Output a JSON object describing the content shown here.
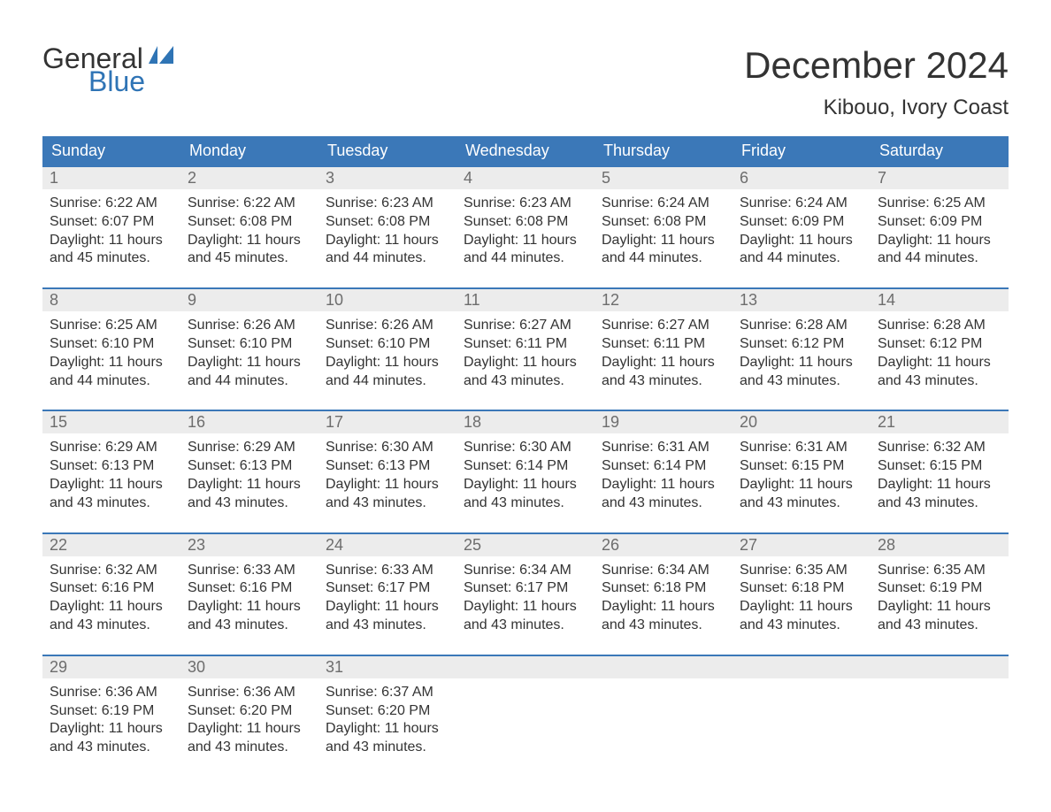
{
  "logo": {
    "word1": "General",
    "word2": "Blue"
  },
  "title": "December 2024",
  "location": "Kibouo, Ivory Coast",
  "colors": {
    "header_bg": "#3b78b8",
    "header_text": "#ffffff",
    "daynum_bg": "#ececec",
    "daynum_text": "#6d6d6d",
    "body_text": "#333333",
    "logo_blue": "#2f74b5",
    "week_border": "#3b78b8",
    "page_bg": "#ffffff"
  },
  "font": {
    "title_size": 42,
    "location_size": 24,
    "weekday_size": 18,
    "daynum_size": 18,
    "body_size": 16
  },
  "weekdays": [
    "Sunday",
    "Monday",
    "Tuesday",
    "Wednesday",
    "Thursday",
    "Friday",
    "Saturday"
  ],
  "weeks": [
    [
      {
        "n": "1",
        "sr": "Sunrise: 6:22 AM",
        "ss": "Sunset: 6:07 PM",
        "d1": "Daylight: 11 hours",
        "d2": "and 45 minutes."
      },
      {
        "n": "2",
        "sr": "Sunrise: 6:22 AM",
        "ss": "Sunset: 6:08 PM",
        "d1": "Daylight: 11 hours",
        "d2": "and 45 minutes."
      },
      {
        "n": "3",
        "sr": "Sunrise: 6:23 AM",
        "ss": "Sunset: 6:08 PM",
        "d1": "Daylight: 11 hours",
        "d2": "and 44 minutes."
      },
      {
        "n": "4",
        "sr": "Sunrise: 6:23 AM",
        "ss": "Sunset: 6:08 PM",
        "d1": "Daylight: 11 hours",
        "d2": "and 44 minutes."
      },
      {
        "n": "5",
        "sr": "Sunrise: 6:24 AM",
        "ss": "Sunset: 6:08 PM",
        "d1": "Daylight: 11 hours",
        "d2": "and 44 minutes."
      },
      {
        "n": "6",
        "sr": "Sunrise: 6:24 AM",
        "ss": "Sunset: 6:09 PM",
        "d1": "Daylight: 11 hours",
        "d2": "and 44 minutes."
      },
      {
        "n": "7",
        "sr": "Sunrise: 6:25 AM",
        "ss": "Sunset: 6:09 PM",
        "d1": "Daylight: 11 hours",
        "d2": "and 44 minutes."
      }
    ],
    [
      {
        "n": "8",
        "sr": "Sunrise: 6:25 AM",
        "ss": "Sunset: 6:10 PM",
        "d1": "Daylight: 11 hours",
        "d2": "and 44 minutes."
      },
      {
        "n": "9",
        "sr": "Sunrise: 6:26 AM",
        "ss": "Sunset: 6:10 PM",
        "d1": "Daylight: 11 hours",
        "d2": "and 44 minutes."
      },
      {
        "n": "10",
        "sr": "Sunrise: 6:26 AM",
        "ss": "Sunset: 6:10 PM",
        "d1": "Daylight: 11 hours",
        "d2": "and 44 minutes."
      },
      {
        "n": "11",
        "sr": "Sunrise: 6:27 AM",
        "ss": "Sunset: 6:11 PM",
        "d1": "Daylight: 11 hours",
        "d2": "and 43 minutes."
      },
      {
        "n": "12",
        "sr": "Sunrise: 6:27 AM",
        "ss": "Sunset: 6:11 PM",
        "d1": "Daylight: 11 hours",
        "d2": "and 43 minutes."
      },
      {
        "n": "13",
        "sr": "Sunrise: 6:28 AM",
        "ss": "Sunset: 6:12 PM",
        "d1": "Daylight: 11 hours",
        "d2": "and 43 minutes."
      },
      {
        "n": "14",
        "sr": "Sunrise: 6:28 AM",
        "ss": "Sunset: 6:12 PM",
        "d1": "Daylight: 11 hours",
        "d2": "and 43 minutes."
      }
    ],
    [
      {
        "n": "15",
        "sr": "Sunrise: 6:29 AM",
        "ss": "Sunset: 6:13 PM",
        "d1": "Daylight: 11 hours",
        "d2": "and 43 minutes."
      },
      {
        "n": "16",
        "sr": "Sunrise: 6:29 AM",
        "ss": "Sunset: 6:13 PM",
        "d1": "Daylight: 11 hours",
        "d2": "and 43 minutes."
      },
      {
        "n": "17",
        "sr": "Sunrise: 6:30 AM",
        "ss": "Sunset: 6:13 PM",
        "d1": "Daylight: 11 hours",
        "d2": "and 43 minutes."
      },
      {
        "n": "18",
        "sr": "Sunrise: 6:30 AM",
        "ss": "Sunset: 6:14 PM",
        "d1": "Daylight: 11 hours",
        "d2": "and 43 minutes."
      },
      {
        "n": "19",
        "sr": "Sunrise: 6:31 AM",
        "ss": "Sunset: 6:14 PM",
        "d1": "Daylight: 11 hours",
        "d2": "and 43 minutes."
      },
      {
        "n": "20",
        "sr": "Sunrise: 6:31 AM",
        "ss": "Sunset: 6:15 PM",
        "d1": "Daylight: 11 hours",
        "d2": "and 43 minutes."
      },
      {
        "n": "21",
        "sr": "Sunrise: 6:32 AM",
        "ss": "Sunset: 6:15 PM",
        "d1": "Daylight: 11 hours",
        "d2": "and 43 minutes."
      }
    ],
    [
      {
        "n": "22",
        "sr": "Sunrise: 6:32 AM",
        "ss": "Sunset: 6:16 PM",
        "d1": "Daylight: 11 hours",
        "d2": "and 43 minutes."
      },
      {
        "n": "23",
        "sr": "Sunrise: 6:33 AM",
        "ss": "Sunset: 6:16 PM",
        "d1": "Daylight: 11 hours",
        "d2": "and 43 minutes."
      },
      {
        "n": "24",
        "sr": "Sunrise: 6:33 AM",
        "ss": "Sunset: 6:17 PM",
        "d1": "Daylight: 11 hours",
        "d2": "and 43 minutes."
      },
      {
        "n": "25",
        "sr": "Sunrise: 6:34 AM",
        "ss": "Sunset: 6:17 PM",
        "d1": "Daylight: 11 hours",
        "d2": "and 43 minutes."
      },
      {
        "n": "26",
        "sr": "Sunrise: 6:34 AM",
        "ss": "Sunset: 6:18 PM",
        "d1": "Daylight: 11 hours",
        "d2": "and 43 minutes."
      },
      {
        "n": "27",
        "sr": "Sunrise: 6:35 AM",
        "ss": "Sunset: 6:18 PM",
        "d1": "Daylight: 11 hours",
        "d2": "and 43 minutes."
      },
      {
        "n": "28",
        "sr": "Sunrise: 6:35 AM",
        "ss": "Sunset: 6:19 PM",
        "d1": "Daylight: 11 hours",
        "d2": "and 43 minutes."
      }
    ],
    [
      {
        "n": "29",
        "sr": "Sunrise: 6:36 AM",
        "ss": "Sunset: 6:19 PM",
        "d1": "Daylight: 11 hours",
        "d2": "and 43 minutes."
      },
      {
        "n": "30",
        "sr": "Sunrise: 6:36 AM",
        "ss": "Sunset: 6:20 PM",
        "d1": "Daylight: 11 hours",
        "d2": "and 43 minutes."
      },
      {
        "n": "31",
        "sr": "Sunrise: 6:37 AM",
        "ss": "Sunset: 6:20 PM",
        "d1": "Daylight: 11 hours",
        "d2": "and 43 minutes."
      },
      null,
      null,
      null,
      null
    ]
  ]
}
